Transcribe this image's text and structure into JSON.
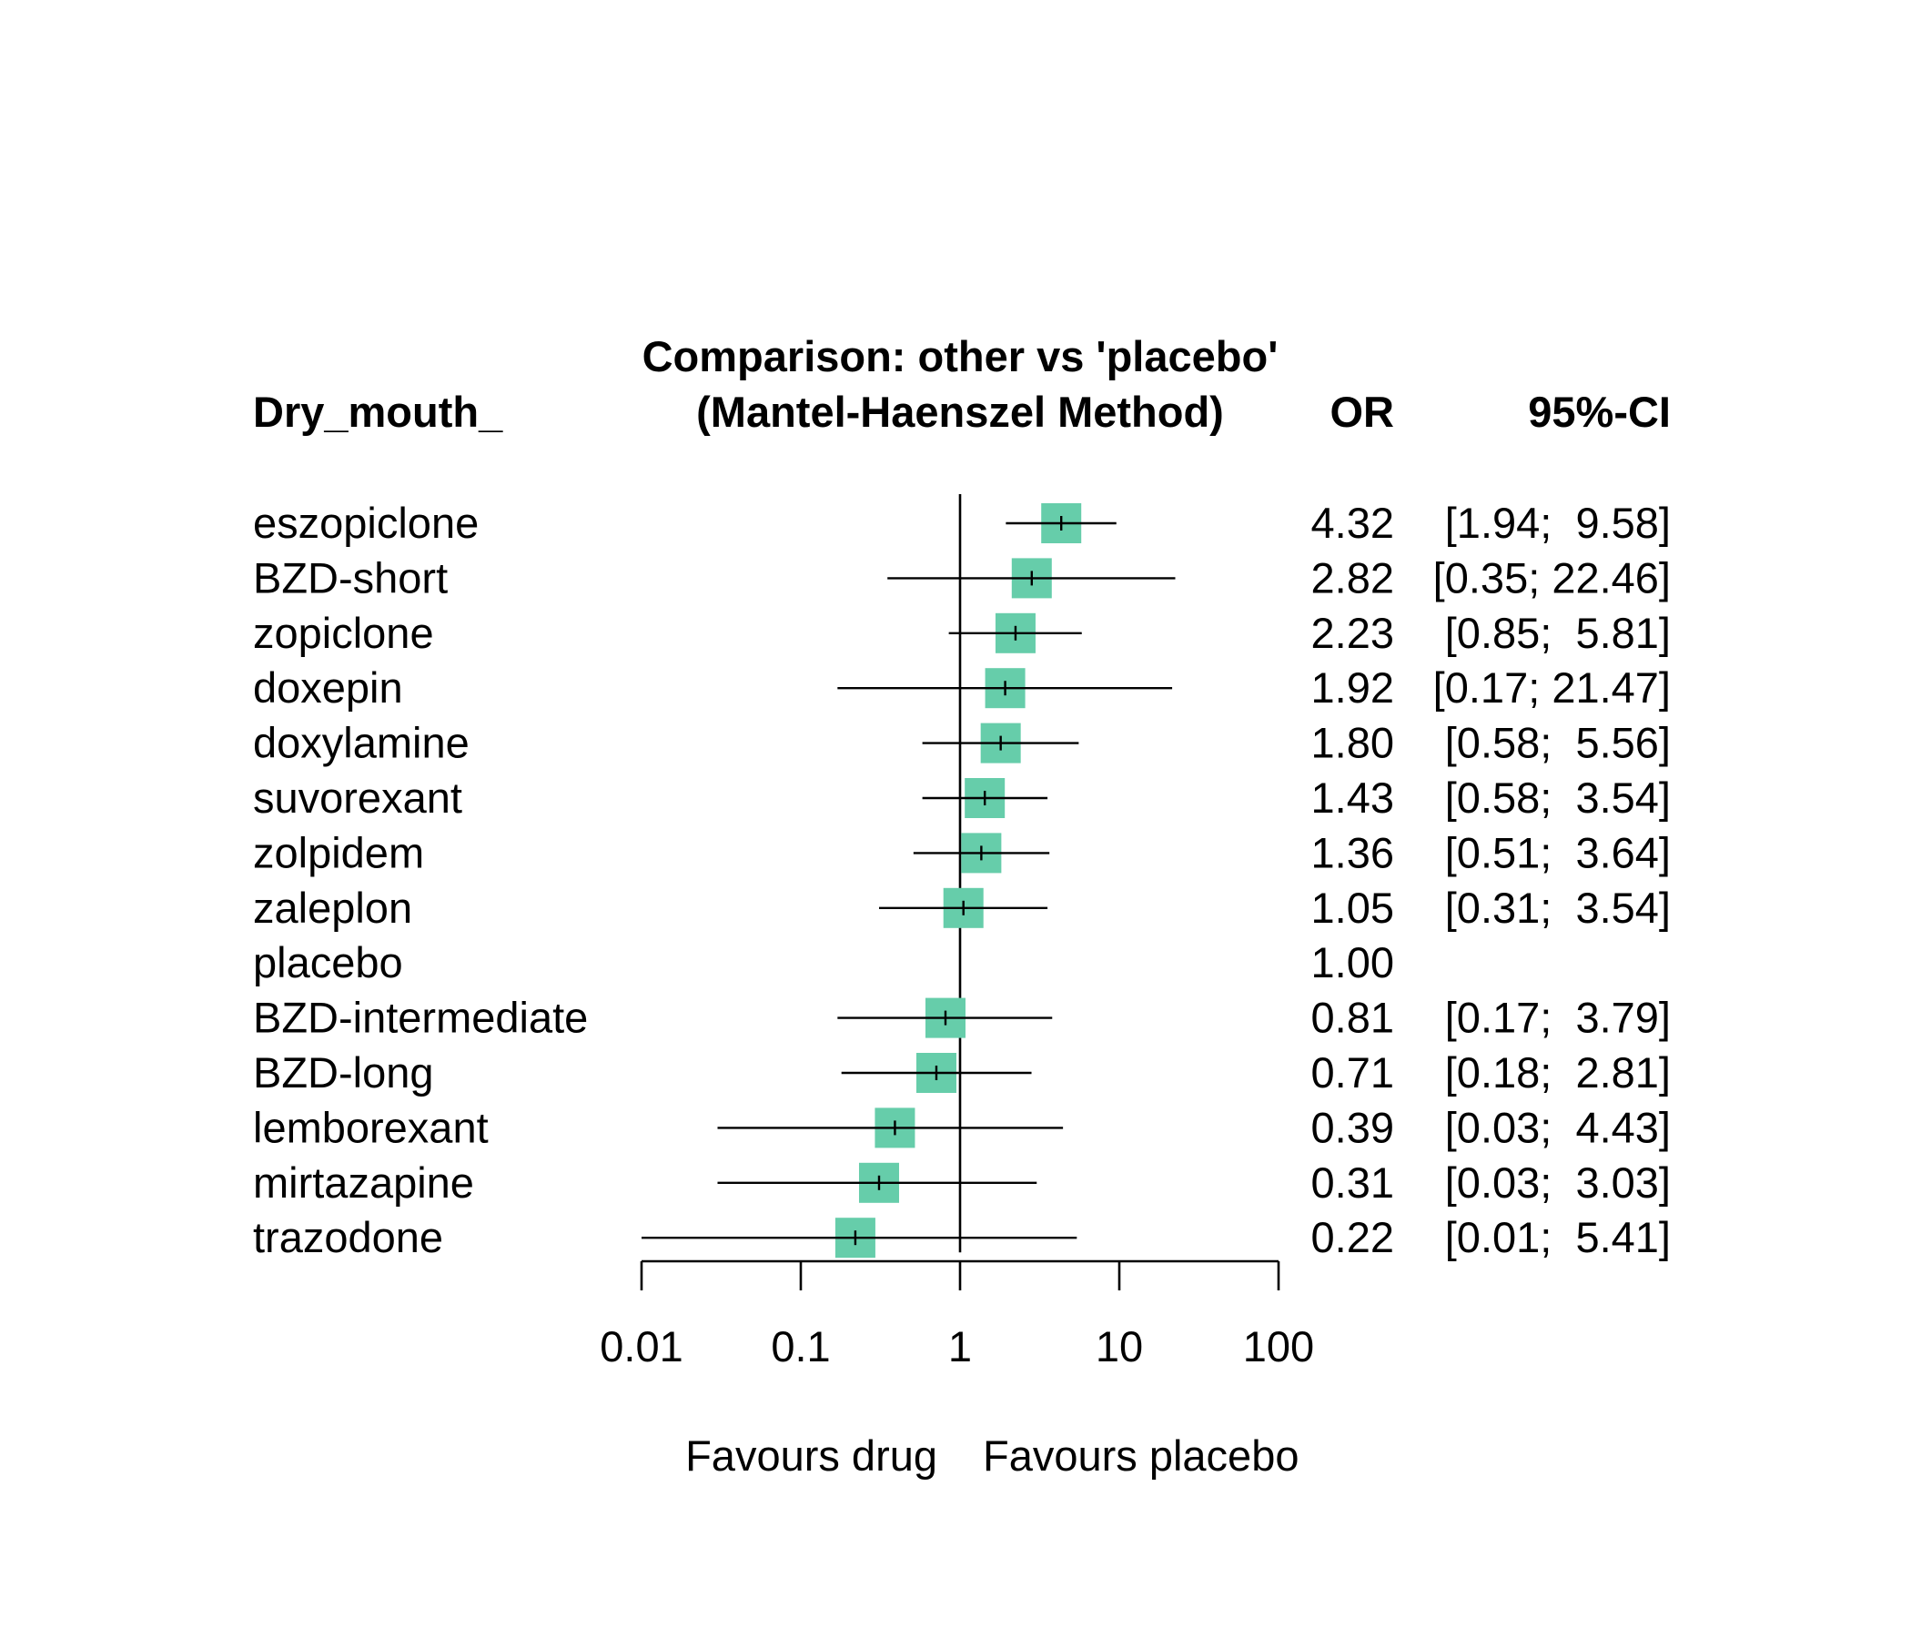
{
  "header": {
    "outcome_label": "Dry_mouth_",
    "title_line1": "Comparison: other vs 'placebo'",
    "title_line2": "(Mantel-Haenszel Method)",
    "or_header": "OR",
    "ci_header": "95%-CI"
  },
  "footer": {
    "favours_left": "Favours drug",
    "favours_right": "Favours placebo"
  },
  "colors": {
    "box": "#66CDAA",
    "line": "#000000"
  },
  "chart_data": {
    "type": "forest",
    "title": "Comparison: other vs 'placebo' (Mantel-Haenszel Method)",
    "xscale": "log",
    "xlim": [
      0.01,
      100
    ],
    "reference_line": 1,
    "ticks": [
      {
        "value": 0.01,
        "label": "0.01"
      },
      {
        "value": 0.1,
        "label": "0.1"
      },
      {
        "value": 1,
        "label": "1"
      },
      {
        "value": 10,
        "label": "10"
      },
      {
        "value": 100,
        "label": "100"
      }
    ],
    "rows": [
      {
        "label": "eszopiclone",
        "or": 4.32,
        "lower": 1.94,
        "upper": 9.58,
        "or_text": "4.32",
        "ci_text": "[1.94;  9.58]"
      },
      {
        "label": "BZD-short",
        "or": 2.82,
        "lower": 0.35,
        "upper": 22.46,
        "or_text": "2.82",
        "ci_text": "[0.35; 22.46]"
      },
      {
        "label": "zopiclone",
        "or": 2.23,
        "lower": 0.85,
        "upper": 5.81,
        "or_text": "2.23",
        "ci_text": "[0.85;  5.81]"
      },
      {
        "label": "doxepin",
        "or": 1.92,
        "lower": 0.17,
        "upper": 21.47,
        "or_text": "1.92",
        "ci_text": "[0.17; 21.47]"
      },
      {
        "label": "doxylamine",
        "or": 1.8,
        "lower": 0.58,
        "upper": 5.56,
        "or_text": "1.80",
        "ci_text": "[0.58;  5.56]"
      },
      {
        "label": "suvorexant",
        "or": 1.43,
        "lower": 0.58,
        "upper": 3.54,
        "or_text": "1.43",
        "ci_text": "[0.58;  3.54]"
      },
      {
        "label": "zolpidem",
        "or": 1.36,
        "lower": 0.51,
        "upper": 3.64,
        "or_text": "1.36",
        "ci_text": "[0.51;  3.64]"
      },
      {
        "label": "zaleplon",
        "or": 1.05,
        "lower": 0.31,
        "upper": 3.54,
        "or_text": "1.05",
        "ci_text": "[0.31;  3.54]"
      },
      {
        "label": "placebo",
        "or": 1.0,
        "lower": null,
        "upper": null,
        "or_text": "1.00",
        "ci_text": ""
      },
      {
        "label": "BZD-intermediate",
        "or": 0.81,
        "lower": 0.17,
        "upper": 3.79,
        "or_text": "0.81",
        "ci_text": "[0.17;  3.79]"
      },
      {
        "label": "BZD-long",
        "or": 0.71,
        "lower": 0.18,
        "upper": 2.81,
        "or_text": "0.71",
        "ci_text": "[0.18;  2.81]"
      },
      {
        "label": "lemborexant",
        "or": 0.39,
        "lower": 0.03,
        "upper": 4.43,
        "or_text": "0.39",
        "ci_text": "[0.03;  4.43]"
      },
      {
        "label": "mirtazapine",
        "or": 0.31,
        "lower": 0.03,
        "upper": 3.03,
        "or_text": "0.31",
        "ci_text": "[0.03;  3.03]"
      },
      {
        "label": "trazodone",
        "or": 0.22,
        "lower": 0.01,
        "upper": 5.41,
        "or_text": "0.22",
        "ci_text": "[0.01;  5.41]"
      }
    ]
  }
}
